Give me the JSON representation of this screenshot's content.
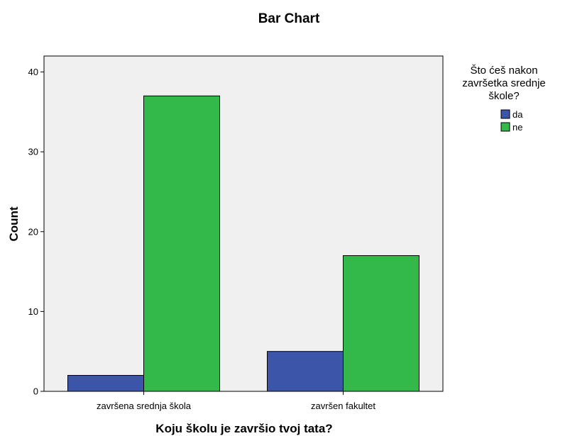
{
  "chart_data": {
    "type": "bar",
    "title": "Bar Chart",
    "xlabel": "Koju školu je završio tvoj tata?",
    "ylabel": "Count",
    "categories": [
      "završena srednja škola",
      "završen fakultet"
    ],
    "series": [
      {
        "name": "da",
        "values": [
          2,
          5
        ],
        "color": "#3d55a8"
      },
      {
        "name": "ne",
        "values": [
          37,
          17
        ],
        "color": "#33b84a"
      }
    ],
    "ylim": [
      0,
      42
    ],
    "yticks": [
      0,
      10,
      20,
      30,
      40
    ],
    "grid": false,
    "plot_background": "#f0f0f0",
    "legend": {
      "title_lines": [
        "Što ćeš nakon",
        "završetka srednje",
        "škole?"
      ],
      "placement": "right"
    }
  }
}
